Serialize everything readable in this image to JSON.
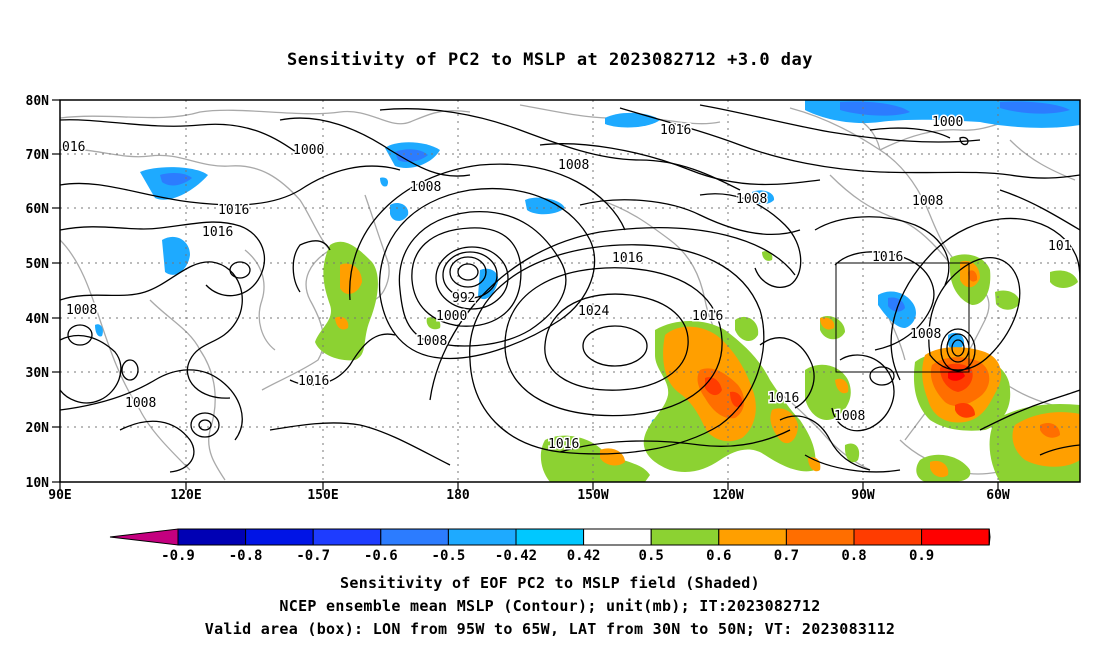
{
  "title": "Sensitivity of PC2 to MSLP at 2023082712 +3.0 day",
  "lat_labels": [
    "80N",
    "70N",
    "60N",
    "50N",
    "40N",
    "30N",
    "20N",
    "10N"
  ],
  "lon_labels": [
    "90E",
    "120E",
    "150E",
    "180",
    "150W",
    "120W",
    "90W",
    "60W"
  ],
  "contour_labels": [
    {
      "text": "016"
    },
    {
      "text": "1000"
    },
    {
      "text": "1008"
    },
    {
      "text": "1016"
    },
    {
      "text": "1016"
    },
    {
      "text": "1008"
    },
    {
      "text": "992"
    },
    {
      "text": "1000"
    },
    {
      "text": "1008"
    },
    {
      "text": "1016"
    },
    {
      "text": "1008"
    },
    {
      "text": "1016"
    },
    {
      "text": "1024"
    },
    {
      "text": "1016"
    },
    {
      "text": "1016"
    },
    {
      "text": "1016"
    },
    {
      "text": "1008"
    },
    {
      "text": "1008"
    },
    {
      "text": "1016"
    },
    {
      "text": "1008"
    },
    {
      "text": "1016"
    },
    {
      "text": "1000"
    },
    {
      "text": "1008"
    },
    {
      "text": "101"
    },
    {
      "text": "1016"
    },
    {
      "text": "1008"
    }
  ],
  "colorbar": {
    "labels": [
      "-0.9",
      "-0.8",
      "-0.7",
      "-0.6",
      "-0.5",
      "-0.42",
      "0.42",
      "0.5",
      "0.6",
      "0.7",
      "0.8",
      "0.9"
    ],
    "colors": [
      "#c4007f",
      "#0000b4",
      "#0014e6",
      "#1e3cff",
      "#2c7cff",
      "#1eaaff",
      "#00c8ff",
      "#ffffff",
      "#8cd232",
      "#ff9f00",
      "#ff6e00",
      "#ff3c00",
      "#ff0000",
      "#ff99cc"
    ]
  },
  "valid_box": {
    "lon_from": "95W",
    "lon_to": "65W",
    "lat_from": "30N",
    "lat_to": "50N"
  },
  "footer": {
    "line1": "Sensitivity of EOF PC2 to MSLP field (Shaded)",
    "line2": "NCEP ensemble mean MSLP (Contour); unit(mb); IT:2023082712",
    "line3": "Valid area (box): LON from 95W to 65W, LAT from 30N to 50N; VT: 2023083112"
  }
}
